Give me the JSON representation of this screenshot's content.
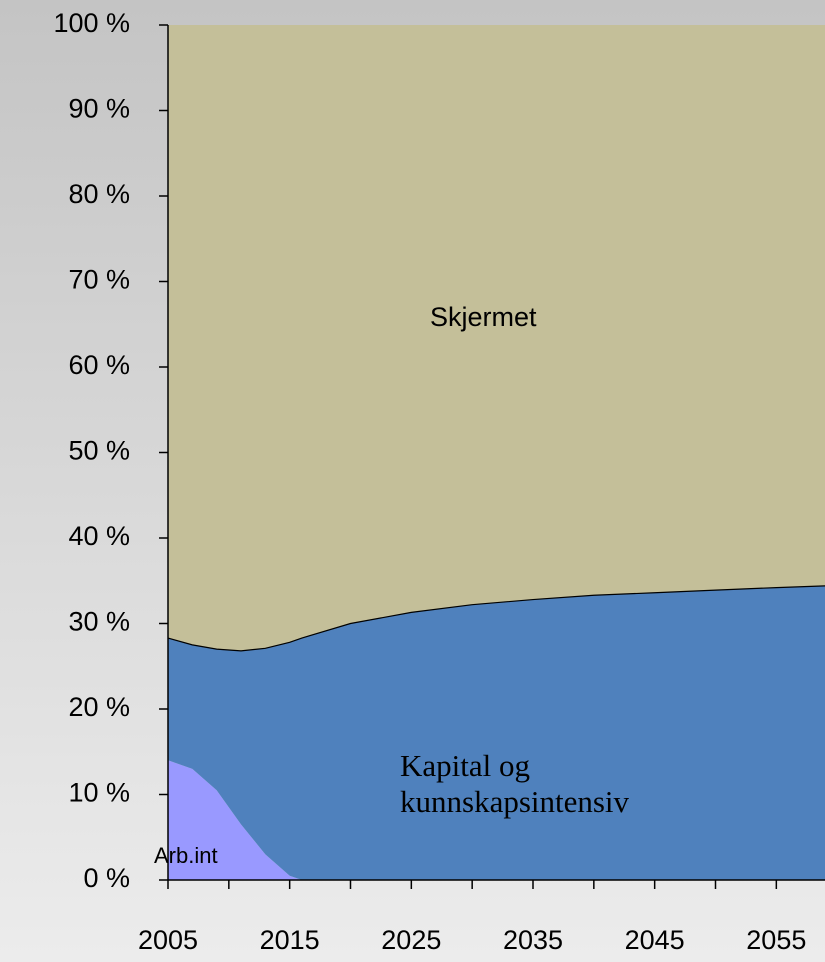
{
  "chart_data": {
    "type": "stacked_area",
    "x": [
      2005,
      2007,
      2009,
      2011,
      2013,
      2015,
      2016,
      2020,
      2025,
      2030,
      2035,
      2040,
      2045,
      2050,
      2055,
      2059
    ],
    "series": [
      {
        "name": "Arb.int",
        "color": "#9999ff",
        "values": [
          14,
          13,
          10.5,
          6.5,
          3,
          0.5,
          0,
          0,
          0,
          0,
          0,
          0,
          0,
          0,
          0,
          0
        ]
      },
      {
        "name": "Kapital og kunnskapsintensiv",
        "color": "#4f81bd",
        "values": [
          14.3,
          14.5,
          16.5,
          20.3,
          24.1,
          27.3,
          28.3,
          30,
          31.3,
          32.2,
          32.8,
          33.3,
          33.6,
          33.9,
          34.2,
          34.4
        ]
      },
      {
        "name": "Skjermet",
        "color": "#c4bf99",
        "values": [
          71.7,
          72.5,
          73,
          73.2,
          72.9,
          72.2,
          71.7,
          70,
          68.7,
          67.8,
          67.2,
          66.7,
          66.4,
          66.1,
          65.8,
          65.6
        ]
      }
    ],
    "xlim": [
      2005,
      2059
    ],
    "xticks": [
      2005,
      2015,
      2025,
      2035,
      2045,
      2055
    ],
    "xminorticks": [
      2010,
      2020,
      2030,
      2040,
      2050
    ],
    "ylim": [
      0,
      100
    ],
    "yticks": [
      {
        "value": 0,
        "label": "0 %"
      },
      {
        "value": 10,
        "label": "10 %"
      },
      {
        "value": 20,
        "label": "20 %"
      },
      {
        "value": 30,
        "label": "30 %"
      },
      {
        "value": 40,
        "label": "40 %"
      },
      {
        "value": 50,
        "label": "50 %"
      },
      {
        "value": 60,
        "label": "60 %"
      },
      {
        "value": 70,
        "label": "70 %"
      },
      {
        "value": 80,
        "label": "80 %"
      },
      {
        "value": 90,
        "label": "90 %"
      },
      {
        "value": {
          "value": 100,
          "label": "100 %"
        },
        "label": "100 %"
      }
    ]
  }
}
